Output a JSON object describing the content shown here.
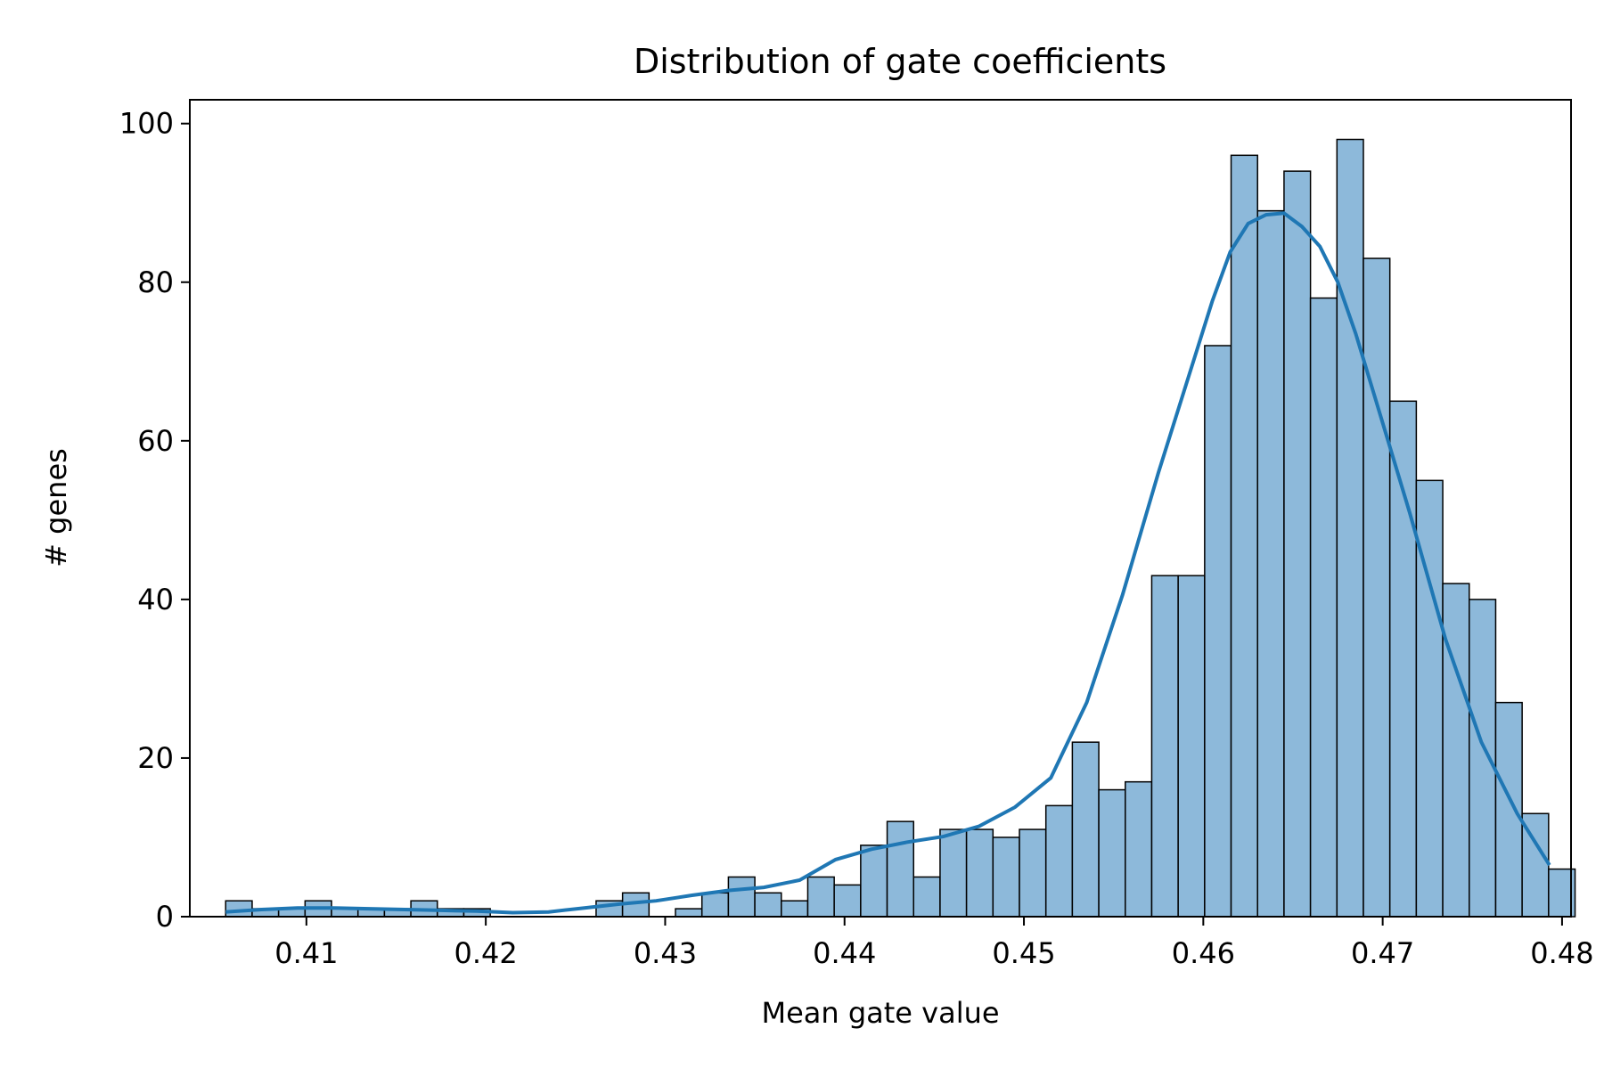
{
  "chart_data": {
    "type": "bar",
    "title": "Distribution of gate coefficients",
    "xlabel": "Mean gate value",
    "ylabel": "# genes",
    "xlim": [
      0.4035,
      0.4805
    ],
    "ylim": [
      0,
      103
    ],
    "x_ticks": [
      "0.41",
      "0.42",
      "0.43",
      "0.44",
      "0.45",
      "0.46",
      "0.47",
      "0.48"
    ],
    "y_ticks": [
      "0",
      "20",
      "40",
      "60",
      "80",
      "100"
    ],
    "bin_start": 0.4055,
    "bin_width": 0.001475,
    "counts": [
      2,
      1,
      1,
      2,
      1,
      1,
      1,
      2,
      1,
      1,
      0,
      0,
      0,
      0,
      2,
      3,
      0,
      1,
      3,
      5,
      3,
      2,
      5,
      4,
      9,
      12,
      5,
      11,
      11,
      10,
      11,
      14,
      22,
      16,
      17,
      43,
      43,
      72,
      96,
      89,
      94,
      78,
      98,
      83,
      65,
      55,
      42,
      40,
      27,
      13,
      6
    ],
    "bar_color": "#8db9da",
    "kde_color": "#1f77b4",
    "kde": {
      "x": [
        0.4055,
        0.4075,
        0.4095,
        0.4115,
        0.4135,
        0.4155,
        0.4175,
        0.4195,
        0.4215,
        0.4235,
        0.4255,
        0.4275,
        0.4295,
        0.4315,
        0.4335,
        0.4355,
        0.4375,
        0.4395,
        0.4415,
        0.4435,
        0.4455,
        0.4475,
        0.4495,
        0.4515,
        0.4535,
        0.4555,
        0.4575,
        0.4595,
        0.4605,
        0.4615,
        0.4625,
        0.4635,
        0.4645,
        0.4655,
        0.4665,
        0.4675,
        0.4685,
        0.4695,
        0.4715,
        0.4735,
        0.4755,
        0.4775,
        0.4793
      ],
      "y": [
        0.6,
        0.9,
        1.1,
        1.1,
        1.0,
        0.9,
        0.8,
        0.7,
        0.5,
        0.6,
        1.1,
        1.6,
        2.0,
        2.7,
        3.3,
        3.7,
        4.6,
        7.2,
        8.5,
        9.4,
        10.1,
        11.4,
        13.8,
        17.5,
        27.0,
        40.6,
        56.0,
        70.4,
        77.6,
        83.8,
        87.4,
        88.5,
        88.7,
        87.0,
        84.5,
        80.0,
        73.5,
        66.0,
        51.0,
        35.0,
        22.0,
        13.0,
        6.5
      ]
    }
  }
}
